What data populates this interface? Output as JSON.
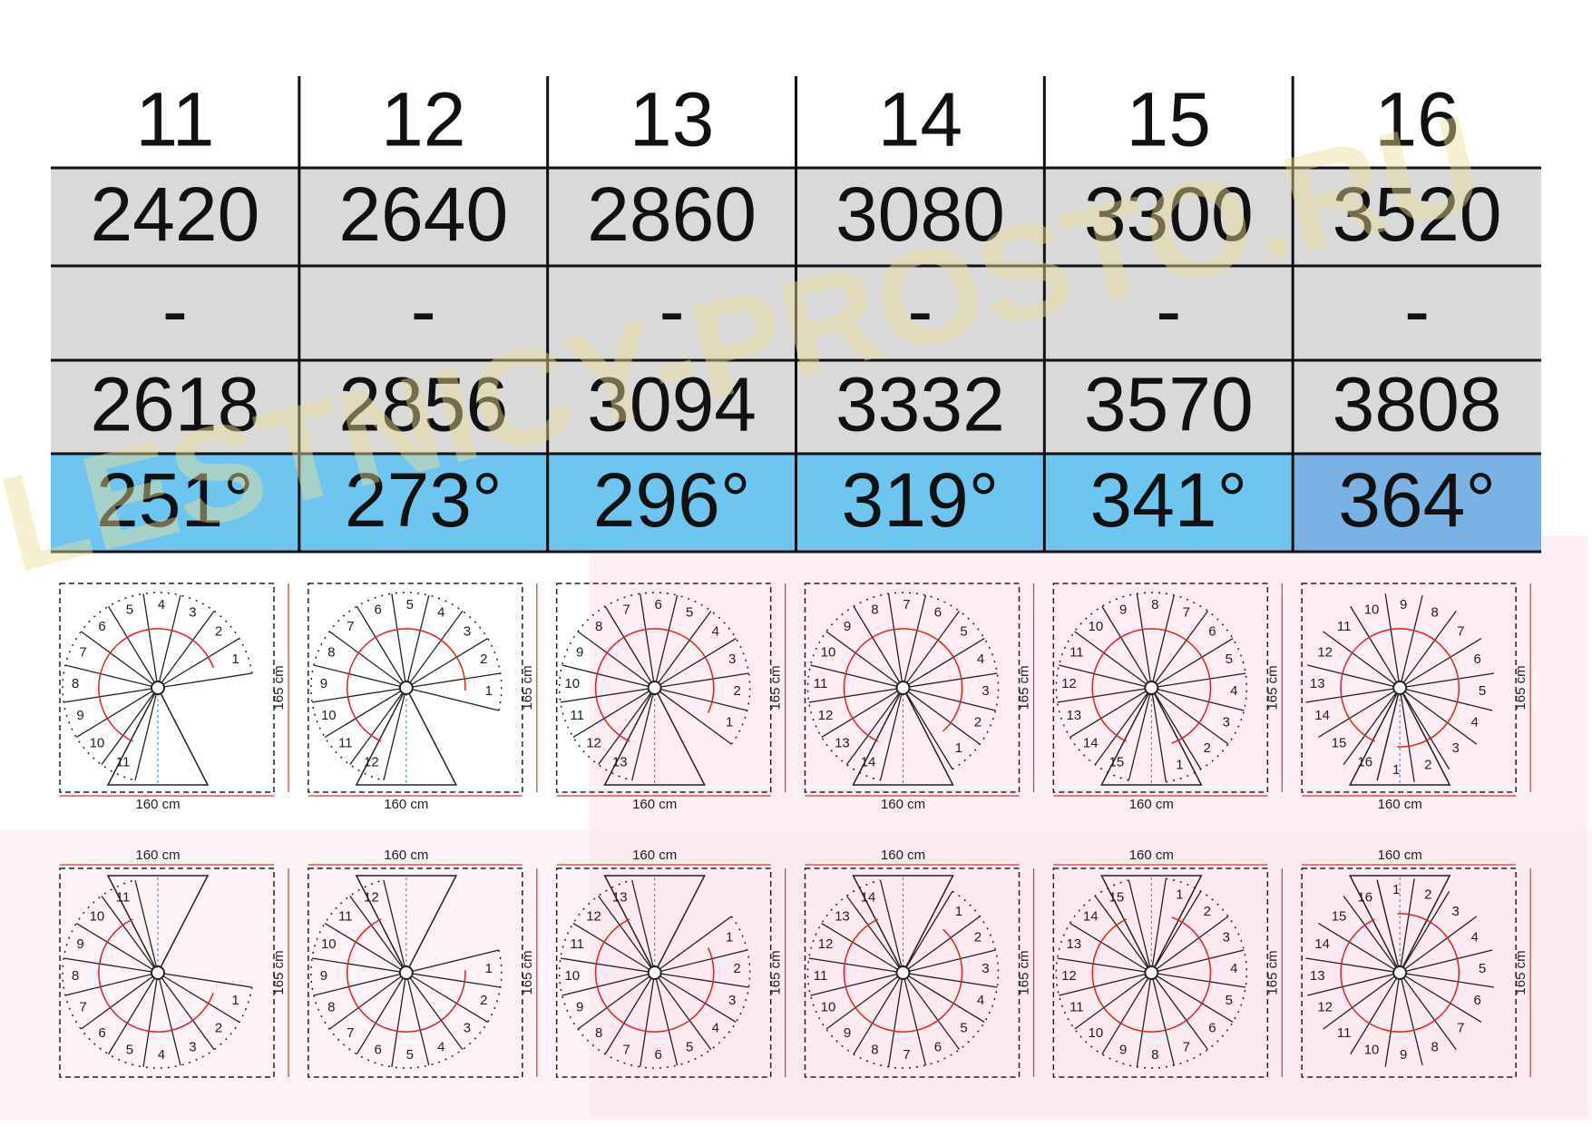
{
  "watermark": "LESTNICY-PROSTO.RU",
  "table": {
    "columns": [
      {
        "steps": 11,
        "height_min": 2420,
        "separator": "-",
        "height_max": 2618,
        "angle": "251°"
      },
      {
        "steps": 12,
        "height_min": 2640,
        "separator": "-",
        "height_max": 2856,
        "angle": "273°"
      },
      {
        "steps": 13,
        "height_min": 2860,
        "separator": "-",
        "height_max": 3094,
        "angle": "296°"
      },
      {
        "steps": 14,
        "height_min": 3080,
        "separator": "-",
        "height_max": 3332,
        "angle": "319°"
      },
      {
        "steps": 15,
        "height_min": 3300,
        "separator": "-",
        "height_max": 3570,
        "angle": "341°"
      },
      {
        "steps": 16,
        "height_min": 3520,
        "separator": "-",
        "height_max": 3808,
        "angle": "364°"
      }
    ]
  },
  "diagrams": {
    "top": [
      {
        "width_label": "160 cm",
        "height_label": "165 cm",
        "step_labels": [
          1,
          2,
          3,
          4,
          5,
          6,
          7,
          8,
          9,
          10,
          11
        ]
      },
      {
        "width_label": "160 cm",
        "height_label": "165 cm",
        "step_labels": [
          1,
          2,
          3,
          4,
          5,
          6,
          7,
          8,
          9,
          10,
          11,
          12
        ]
      },
      {
        "width_label": "160 cm",
        "height_label": "165 cm",
        "step_labels": [
          1,
          2,
          3,
          4,
          5,
          6,
          7,
          8,
          9,
          10,
          11,
          12,
          13
        ]
      },
      {
        "width_label": "160 cm",
        "height_label": "165 cm",
        "step_labels": [
          1,
          2,
          3,
          4,
          5,
          6,
          7,
          8,
          9,
          10,
          11,
          12,
          13,
          14
        ]
      },
      {
        "width_label": "160 cm",
        "height_label": "165 cm",
        "step_labels": [
          1,
          2,
          3,
          4,
          5,
          6,
          7,
          8,
          9,
          10,
          11,
          12,
          13,
          14,
          15
        ]
      },
      {
        "width_label": "160 cm",
        "height_label": "165 cm",
        "step_labels": [
          1,
          2,
          3,
          4,
          5,
          6,
          7,
          8,
          9,
          10,
          11,
          12,
          13,
          14,
          15,
          16
        ]
      }
    ],
    "bottom": [
      {
        "width_label": "160 cm",
        "height_label": "165 cm",
        "step_labels": [
          1,
          2,
          3,
          4,
          5,
          6,
          7,
          8,
          9,
          10,
          11
        ]
      },
      {
        "width_label": "160 cm",
        "height_label": "165 cm",
        "step_labels": [
          1,
          2,
          3,
          4,
          5,
          6,
          7,
          8,
          9,
          10,
          11,
          12
        ]
      },
      {
        "width_label": "160 cm",
        "height_label": "165 cm",
        "step_labels": [
          1,
          2,
          3,
          4,
          5,
          6,
          7,
          8,
          9,
          10,
          11,
          12,
          13
        ]
      },
      {
        "width_label": "160 cm",
        "height_label": "165 cm",
        "step_labels": [
          1,
          2,
          3,
          4,
          5,
          6,
          7,
          8,
          9,
          10,
          11,
          12,
          13,
          14
        ]
      },
      {
        "width_label": "160 cm",
        "height_label": "165 cm",
        "step_labels": [
          1,
          2,
          3,
          4,
          5,
          6,
          7,
          8,
          9,
          10,
          11,
          12,
          13,
          14,
          15
        ]
      },
      {
        "width_label": "160 cm",
        "height_label": "165 cm",
        "step_labels": [
          1,
          2,
          3,
          4,
          5,
          6,
          7,
          8,
          9,
          10,
          11,
          12,
          13,
          14,
          15,
          16
        ]
      }
    ]
  }
}
